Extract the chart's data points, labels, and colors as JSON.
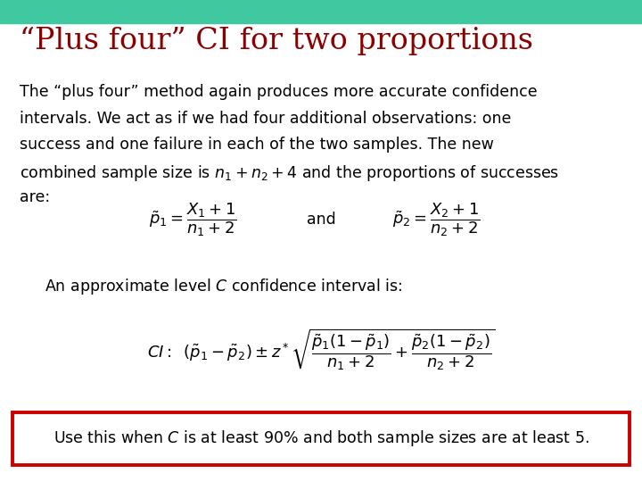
{
  "title": "“Plus four” CI for two proportions",
  "title_color": "#8B0000",
  "title_fontsize": 24,
  "body_fontsize": 12.5,
  "background_color": "#FFFFFF",
  "header_bar_color": "#40C8A0",
  "para_line1": "The “plus four” method again produces more accurate confidence",
  "para_line2": "intervals. We act as if we had four additional observations: one",
  "para_line3": "success and one failure in each of the two samples. The new",
  "para_line4": "combined sample size is $n_1 + n_2 + 4$ and the proportions of successes",
  "para_line5": "are:",
  "approx_text": "An approximate level $C$ confidence interval is:",
  "box_text": "Use this when $C$ is at least 90% and both sample sizes are at least 5.",
  "box_color": "#CC0000"
}
